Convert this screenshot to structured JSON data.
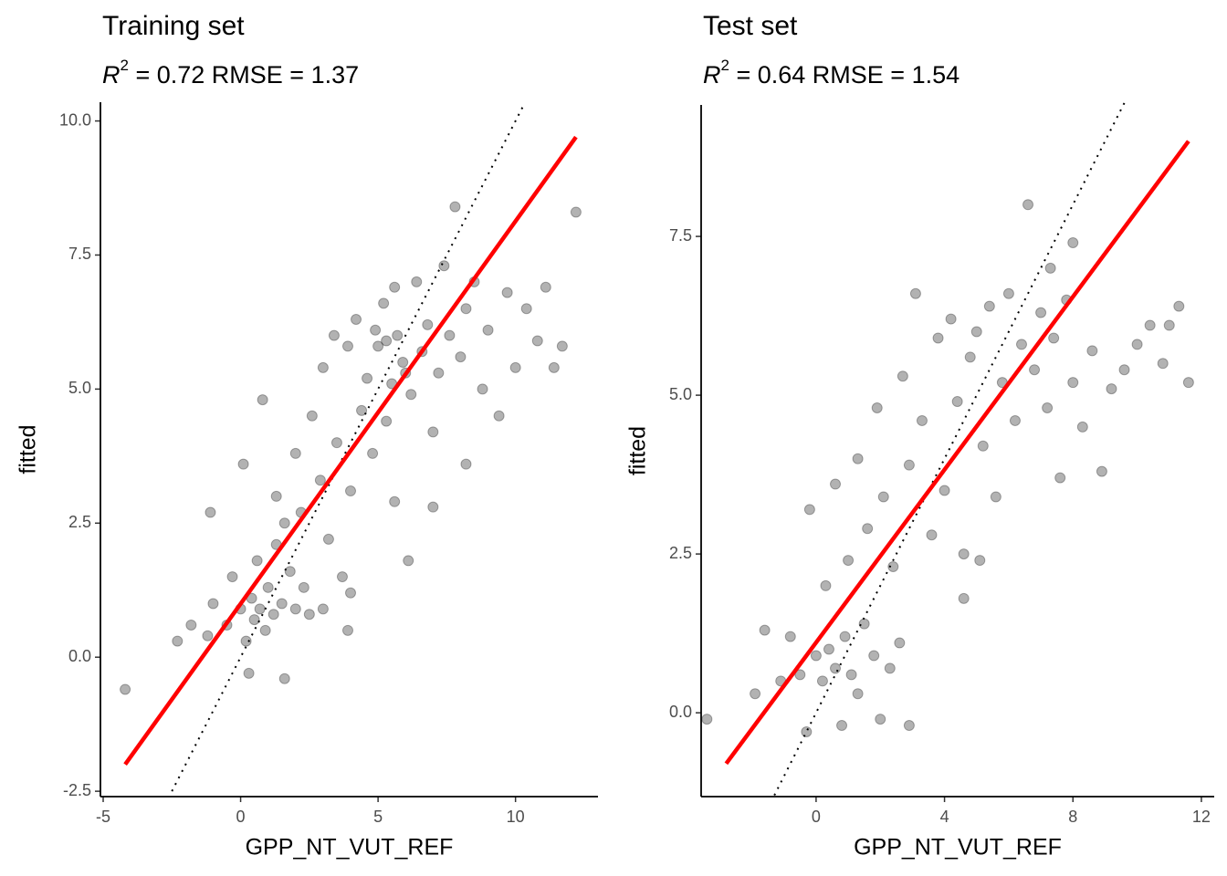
{
  "chart_data": [
    {
      "type": "scatter",
      "title": "Training set",
      "subtitle": {
        "symbol": "R",
        "superscript": "2",
        "text": " = 0.72  RMSE = 1.37"
      },
      "x_label": "GPP_NT_VUT_REF",
      "y_label": "fitted",
      "xlim": [
        -5.1,
        13.0
      ],
      "ylim": [
        -2.6,
        10.35
      ],
      "xticks": [
        -5,
        0,
        5,
        10
      ],
      "yticks": [
        {
          "value": -2.5,
          "label": "-2.5"
        },
        {
          "value": 0,
          "label": "0.0"
        },
        2.5,
        {
          "value": 5,
          "label": "5.0"
        },
        7.5,
        {
          "value": 10,
          "label": "10.0"
        }
      ],
      "point_color": "#000000",
      "point_opacity": 0.3,
      "x": [
        -4.2,
        -2.3,
        -1.8,
        -1.2,
        -1,
        -0.5,
        -0.3,
        0,
        0.2,
        0.4,
        0.5,
        0.7,
        0.9,
        1,
        1.2,
        1.3,
        0.6,
        1.5,
        1.8,
        2,
        2.3,
        2.5,
        -1.1,
        0.1,
        0.8,
        1.3,
        1.6,
        2,
        2.2,
        2.6,
        2.9,
        3,
        3.2,
        3.5,
        3.7,
        3.9,
        4,
        4.2,
        4.4,
        4.6,
        4.8,
        5,
        5.2,
        5.3,
        5.5,
        5.6,
        5.7,
        5.9,
        6.1,
        6.2,
        6.4,
        6.6,
        6.8,
        7,
        7.2,
        7.4,
        7.6,
        7.8,
        8,
        8.2,
        8.5,
        8.8,
        9,
        9.4,
        9.7,
        10,
        10.4,
        10.8,
        11.1,
        11.4,
        11.7,
        12.2,
        7,
        8.2,
        1.6,
        0.3,
        3,
        3.9,
        4,
        5.6,
        4.9,
        5.3,
        6,
        3.4
      ],
      "values": [
        -0.6,
        0.3,
        0.6,
        0.4,
        1,
        0.6,
        1.5,
        0.9,
        0.3,
        1.1,
        0.7,
        0.9,
        0.5,
        1.3,
        0.8,
        2.1,
        1.8,
        1,
        1.6,
        0.9,
        1.3,
        0.8,
        2.7,
        3.6,
        4.8,
        3,
        2.5,
        3.8,
        2.7,
        4.5,
        3.3,
        5.4,
        2.2,
        4,
        1.5,
        5.8,
        3.1,
        6.3,
        4.6,
        5.2,
        3.8,
        5.8,
        6.6,
        4.4,
        5.1,
        2.9,
        6,
        5.5,
        1.8,
        4.9,
        7,
        5.7,
        6.2,
        4.2,
        5.3,
        7.3,
        6,
        8.4,
        5.6,
        6.5,
        7,
        5,
        6.1,
        4.5,
        6.8,
        5.4,
        6.5,
        5.9,
        6.9,
        5.4,
        5.8,
        8.3,
        2.8,
        3.6,
        -0.4,
        -0.3,
        0.9,
        0.5,
        1.2,
        6.9,
        6.1,
        5.9,
        5.3,
        6
      ],
      "fit_line": {
        "x": [
          -4.2,
          12.2
        ],
        "y": [
          -2.0,
          9.7
        ],
        "color": "#ff0000"
      },
      "identity_line": {
        "x": [
          -2.5,
          10.3
        ],
        "y": [
          -2.5,
          10.3
        ],
        "color": "#000000"
      }
    },
    {
      "type": "scatter",
      "title": "Test set",
      "subtitle": {
        "symbol": "R",
        "superscript": "2",
        "text": " = 0.64  RMSE = 1.54"
      },
      "x_label": "GPP_NT_VUT_REF",
      "y_label": "fitted",
      "xlim": [
        -3.58,
        12.4
      ],
      "ylim": [
        -1.32,
        9.57
      ],
      "xticks": [
        0,
        4,
        8,
        12
      ],
      "yticks": [
        {
          "value": 0,
          "label": "0.0"
        },
        2.5,
        {
          "value": 5,
          "label": "5.0"
        },
        7.5
      ],
      "point_color": "#000000",
      "point_opacity": 0.3,
      "x": [
        -3.4,
        -1.9,
        -1.6,
        -1.1,
        -0.8,
        -0.5,
        -0.3,
        0,
        0.2,
        0.4,
        0.6,
        0.8,
        0.9,
        1.1,
        1.3,
        1.5,
        1.8,
        2,
        2.3,
        2.6,
        2.9,
        -0.2,
        0.3,
        0.6,
        1,
        1.3,
        1.6,
        1.9,
        2.1,
        2.4,
        2.7,
        2.9,
        3.1,
        3.3,
        3.6,
        3.8,
        4,
        4.2,
        4.4,
        4.6,
        4.8,
        5,
        5.2,
        5.4,
        5.6,
        5.8,
        6,
        6.2,
        6.4,
        6.6,
        6.8,
        7,
        7.2,
        7.4,
        7.6,
        7.8,
        8,
        8.3,
        8.6,
        8.9,
        9.2,
        9.6,
        10,
        10.4,
        10.8,
        11,
        11.3,
        11.6,
        4.6,
        5.1,
        7.3,
        8
      ],
      "values": [
        -0.1,
        0.3,
        1.3,
        0.5,
        1.2,
        0.6,
        -0.3,
        0.9,
        0.5,
        1,
        0.7,
        -0.2,
        1.2,
        0.6,
        0.3,
        1.4,
        0.9,
        -0.1,
        0.7,
        1.1,
        -0.2,
        3.2,
        2,
        3.6,
        2.4,
        4,
        2.9,
        4.8,
        3.4,
        2.3,
        5.3,
        3.9,
        6.6,
        4.6,
        2.8,
        5.9,
        3.5,
        6.2,
        4.9,
        2.5,
        5.6,
        6,
        4.2,
        6.4,
        3.4,
        5.2,
        6.6,
        4.6,
        5.8,
        8,
        5.4,
        6.3,
        4.8,
        5.9,
        3.7,
        6.5,
        5.2,
        4.5,
        5.7,
        3.8,
        5.1,
        5.4,
        5.8,
        6.1,
        5.5,
        6.1,
        6.4,
        5.2,
        1.8,
        2.4,
        7,
        7.4
      ],
      "fit_line": {
        "x": [
          -2.8,
          11.6
        ],
        "y": [
          -0.8,
          9.0
        ],
        "color": "#ff0000"
      },
      "identity_line": {
        "x": [
          -1.3,
          9.6
        ],
        "y": [
          -1.3,
          9.6
        ],
        "color": "#000000"
      }
    }
  ]
}
